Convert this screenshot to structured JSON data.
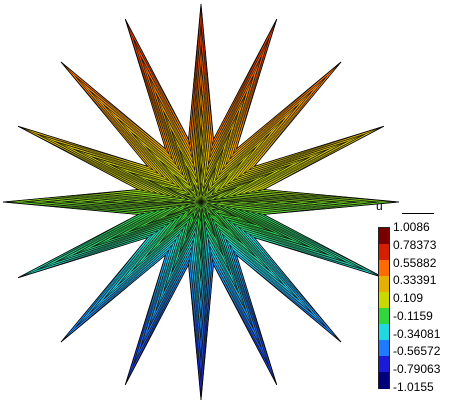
{
  "colorbar": {
    "title": "u",
    "labels": [
      "1.0086",
      "0.78373",
      "0.55882",
      "0.33391",
      "0.109",
      "-0.1159",
      "-0.34081",
      "-0.56572",
      "-0.79063",
      "-1.0155"
    ],
    "colors": [
      "#7a0000",
      "#d42000",
      "#ff6b00",
      "#e7b000",
      "#c8d800",
      "#2fd63c",
      "#1fd8e0",
      "#1e7bff",
      "#1a1ad8",
      "#00007a"
    ]
  },
  "mesh": {
    "star_points": 16,
    "rings": 10,
    "value_min": -1.0155,
    "value_max": 1.0086
  }
}
